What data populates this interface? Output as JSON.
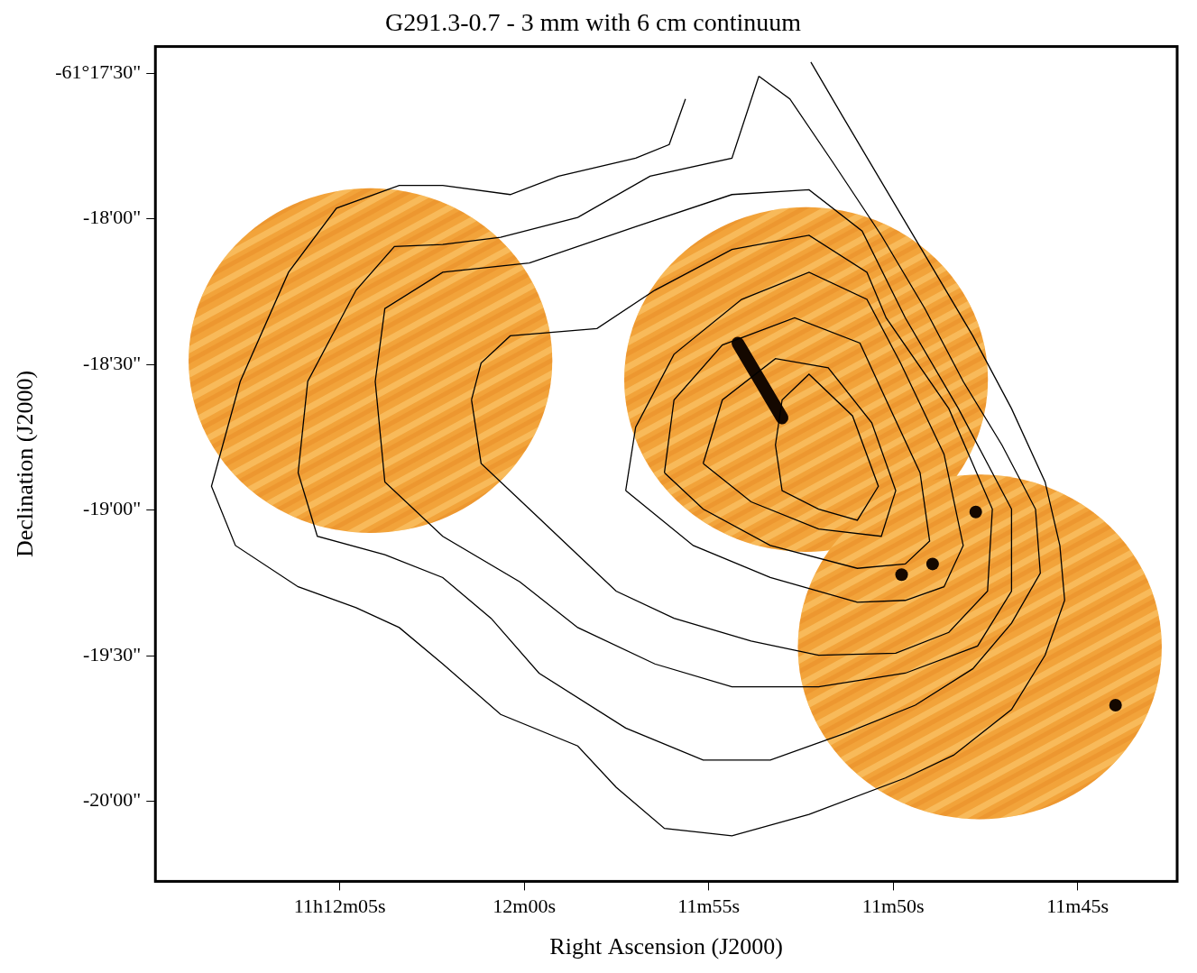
{
  "chart_data": {
    "type": "contour",
    "title": "G291.3-0.7 - 3 mm with 6 cm continuum",
    "x_label": "Right Ascension (J2000)",
    "y_label": "Declination (J2000)",
    "xlim": [
      730,
      702.3
    ],
    "ylim": [
      -220816.5,
      -220644.5
    ],
    "xticks": [
      {
        "value": 725,
        "label": "11h12m05s"
      },
      {
        "value": 720,
        "label": "12m00s"
      },
      {
        "value": 715,
        "label": "11m55s"
      },
      {
        "value": 710,
        "label": "11m50s"
      },
      {
        "value": 705,
        "label": "11m45s"
      }
    ],
    "yticks": [
      {
        "value": -220650,
        "label": "-61°17'30\""
      },
      {
        "value": -220680,
        "label": "-18'00\""
      },
      {
        "value": -220710,
        "label": "-18'30\""
      },
      {
        "value": -220740,
        "label": "-19'00\""
      },
      {
        "value": -220770,
        "label": "-19'30\""
      },
      {
        "value": -220800,
        "label": "-20'00\""
      }
    ],
    "grid": false,
    "color": "#000000",
    "fields": [
      {
        "ra": 724.17,
        "dec": -220709.2,
        "radius": 35.5,
        "color": "#f2a33a"
      },
      {
        "ra": 712.36,
        "dec": -220713.1,
        "radius": 35.5,
        "color": "#f2a33a"
      },
      {
        "ra": 707.65,
        "dec": -220768.2,
        "radius": 35.5,
        "color": "#f2a33a"
      }
    ],
    "sources": [
      {
        "ra": [
          714.21,
          713.01
        ],
        "dec": [
          -220705.6,
          -220721.0
        ],
        "color": "#140800"
      },
      {
        "ra": [
          707.76
        ],
        "dec": [
          -220740.4
        ],
        "color": "#140800"
      },
      {
        "ra": [
          708.93
        ],
        "dec": [
          -220751.1
        ],
        "color": "#140800"
      },
      {
        "ra": [
          709.77
        ],
        "dec": [
          -220753.3
        ],
        "color": "#140800"
      },
      {
        "ra": [
          703.97
        ],
        "dec": [
          -220780.2
        ],
        "color": "#140800"
      }
    ],
    "contours": [
      {
        "ra": [
          715.63,
          716.07,
          716.98,
          719.07,
          720.38,
          722.21,
          723.39,
          725.09,
          726.39,
          727.7,
          728.48,
          727.83,
          726.13,
          724.56,
          723.39,
          722.21,
          720.64,
          718.55,
          717.51,
          716.2,
          714.37,
          712.28,
          709.67,
          708.36,
          706.79,
          705.88,
          705.35,
          705.48,
          705.88,
          706.79,
          707.84,
          709.01,
          710.19,
          711.36,
          712.23
        ],
        "dec": [
          -220655.3,
          -220664.7,
          -220667.5,
          -220671.2,
          -220675.0,
          -220673.1,
          -220673.1,
          -220677.8,
          -220691.0,
          -220713.5,
          -220735.1,
          -220747.3,
          -220755.8,
          -220760.1,
          -220764.2,
          -220771.7,
          -220782.1,
          -220788.6,
          -220797.1,
          -220805.6,
          -220807.1,
          -220802.7,
          -220795.2,
          -220790.5,
          -220781.1,
          -220769.9,
          -220758.6,
          -220747.3,
          -220734.2,
          -220719.1,
          -220704.1,
          -220689.1,
          -220674.0,
          -220659.0,
          -220647.7
        ]
      },
      {
        "ra": [
          713.64,
          714.37,
          716.59,
          718.55,
          720.64,
          722.21,
          723.52,
          724.56,
          725.87,
          726.13,
          725.61,
          723.78,
          722.21,
          720.9,
          719.6,
          717.25,
          715.15,
          713.33,
          711.23,
          709.4,
          707.84,
          706.79,
          706.01,
          706.14,
          707.05,
          708.1,
          709.14,
          710.32,
          711.63,
          712.8,
          713.64
        ],
        "dec": [
          -220650.6,
          -220667.5,
          -220671.2,
          -220679.7,
          -220683.8,
          -220685.3,
          -220685.7,
          -220694.7,
          -220713.5,
          -220732.3,
          -220745.4,
          -220749.2,
          -220753.9,
          -220762.3,
          -220773.6,
          -220784.9,
          -220791.5,
          -220791.5,
          -220785.8,
          -220780.2,
          -220772.7,
          -220763.3,
          -220753.0,
          -220739.8,
          -220726.6,
          -220713.5,
          -220698.5,
          -220683.4,
          -220668.4,
          -220655.3,
          -220650.6
        ]
      },
      {
        "ra": [
          724.04,
          723.78,
          722.21,
          719.86,
          716.98,
          714.37,
          712.28,
          710.84,
          709.67,
          708.23,
          706.79,
          706.79,
          707.71,
          709.67,
          712.02,
          714.37,
          716.46,
          718.55,
          720.12,
          722.21,
          723.78,
          724.04
        ],
        "dec": [
          -220713.5,
          -220698.5,
          -220691.0,
          -220689.1,
          -220681.6,
          -220675.0,
          -220674.0,
          -220682.5,
          -220700.4,
          -220719.1,
          -220739.8,
          -220756.7,
          -220768.0,
          -220773.6,
          -220776.4,
          -220776.4,
          -220771.7,
          -220764.2,
          -220754.8,
          -220745.4,
          -220734.2,
          -220713.5
        ]
      },
      {
        "ra": [
          721.43,
          721.17,
          720.38,
          718.03,
          716.46,
          714.37,
          712.28,
          710.71,
          710.19,
          708.49,
          707.31,
          707.44,
          708.49,
          709.93,
          712.02,
          713.85,
          715.94,
          717.51,
          718.55,
          719.86,
          721.17,
          721.43
        ],
        "dec": [
          -220717.3,
          -220709.7,
          -220704.1,
          -220702.6,
          -220694.7,
          -220686.3,
          -220683.4,
          -220691.0,
          -220700.4,
          -220719.1,
          -220739.8,
          -220756.7,
          -220765.2,
          -220769.5,
          -220769.9,
          -220767.0,
          -220762.3,
          -220756.7,
          -220749.2,
          -220739.8,
          -220730.4,
          -220717.3
        ]
      },
      {
        "ra": [
          717.25,
          716.98,
          715.94,
          714.11,
          712.28,
          710.71,
          709.8,
          708.62,
          708.1,
          708.62,
          709.67,
          710.97,
          713.33,
          715.42,
          717.25
        ],
        "dec": [
          -220736.0,
          -220722.9,
          -220707.9,
          -220696.6,
          -220691.0,
          -220696.6,
          -220709.7,
          -220728.5,
          -220747.3,
          -220755.8,
          -220758.6,
          -220759.0,
          -220753.9,
          -220747.3,
          -220736.0
        ]
      },
      {
        "ra": [
          716.2,
          715.94,
          714.63,
          712.67,
          710.9,
          710.19,
          709.27,
          709.01,
          709.67,
          710.97,
          713.33,
          715.15,
          716.2
        ],
        "dec": [
          -220732.3,
          -220717.3,
          -220706.0,
          -220700.4,
          -220705.6,
          -220717.3,
          -220732.3,
          -220746.4,
          -220751.1,
          -220752.0,
          -220747.3,
          -220739.8,
          -220732.3
        ]
      },
      {
        "ra": [
          715.15,
          714.63,
          713.19,
          711.76,
          710.58,
          709.93,
          710.32,
          712.02,
          713.85,
          715.15
        ],
        "dec": [
          -220730.4,
          -220717.3,
          -220708.8,
          -220710.7,
          -220722.0,
          -220736.0,
          -220745.4,
          -220743.9,
          -220738.3,
          -220730.4
        ]
      },
      {
        "ra": [
          713.19,
          713.01,
          712.28,
          711.1,
          710.4,
          710.97,
          712.02,
          713.01,
          713.19
        ],
        "dec": [
          -220726.6,
          -220717.3,
          -220712.0,
          -220720.6,
          -220735.1,
          -220742.1,
          -220739.8,
          -220736.0,
          -220726.6
        ]
      }
    ]
  }
}
